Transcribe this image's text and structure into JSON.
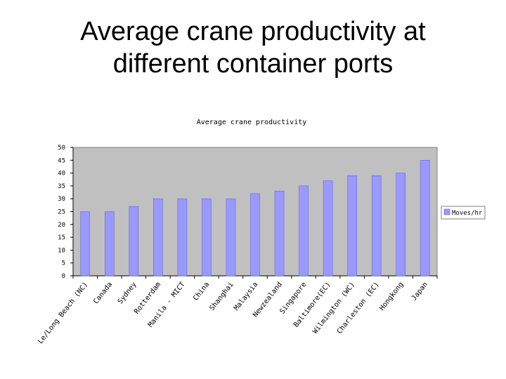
{
  "slide": {
    "title_line1": "Average crane productivity at",
    "title_line2": "different container ports"
  },
  "colors": {
    "plot_background": "#c0c0c0",
    "bar_fill": "#9999ff",
    "bar_stroke": "#6666cc",
    "text": "#000000"
  },
  "chart_data": {
    "type": "bar",
    "title": "Average crane productivity",
    "xlabel": "",
    "ylabel": "",
    "categories": [
      "Le/Long Beach (NC)",
      "Canada",
      "Sydney",
      "Rotterdam",
      "Manila - MICT",
      "China",
      "Shanghai",
      "Malaysia",
      "Newzealand",
      "Singapore",
      "Baltimore(EC)",
      "Wilmington (WC)",
      "Charleston (EC)",
      "Hongkong",
      "Japan"
    ],
    "series": [
      {
        "name": "Moves/hr",
        "values": [
          25,
          25,
          27,
          30,
          30,
          30,
          30,
          32,
          33,
          35,
          37,
          39,
          39,
          40,
          45
        ]
      }
    ],
    "yticks": [
      "0",
      "5",
      "10",
      "15",
      "20",
      "25",
      "30",
      "35",
      "40",
      "45",
      "50"
    ],
    "ylim": [
      0,
      50
    ],
    "grid": false,
    "legend": "right"
  }
}
